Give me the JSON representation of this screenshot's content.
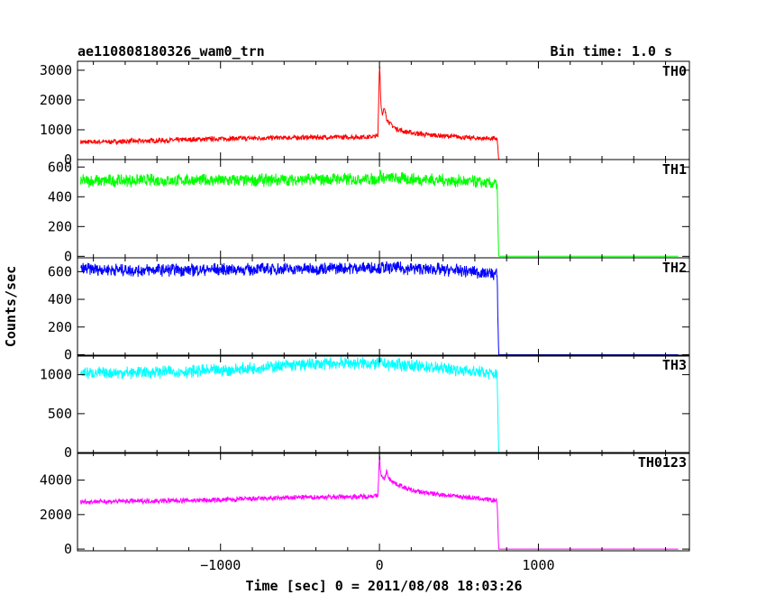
{
  "header": {
    "title": "ae110808180326_wam0_trn",
    "bin_time": "Bin time: 1.0 s"
  },
  "chart_data": {
    "type": "line",
    "xlabel": "Time [sec] 0 = 2011/08/08 18:03:26",
    "ylabel": "Counts/sec",
    "xlim": [
      -1900,
      1950
    ],
    "xticks": [
      -1000,
      0,
      1000
    ],
    "xtick_labels": [
      "−1000",
      "0",
      "1000"
    ],
    "grid": false,
    "panels": [
      {
        "name": "TH0",
        "color": "#ff0000",
        "ylim": [
          0,
          3300
        ],
        "yticks": [
          0,
          1000,
          2000,
          3000
        ],
        "ytick_labels": [
          "0",
          "1000",
          "2000",
          "3000"
        ],
        "x": [
          -1880,
          -1500,
          -1000,
          -500,
          -100,
          -10,
          0,
          5,
          10,
          20,
          30,
          45,
          60,
          100,
          150,
          200,
          300,
          400,
          500,
          600,
          740,
          750,
          760,
          1000,
          1500,
          1880
        ],
        "y": [
          580,
          620,
          700,
          740,
          760,
          780,
          3250,
          2600,
          1800,
          1500,
          1700,
          1400,
          1250,
          1050,
          950,
          900,
          830,
          800,
          760,
          720,
          700,
          0,
          0,
          0,
          0,
          0
        ]
      },
      {
        "name": "TH1",
        "color": "#00ff00",
        "ylim": [
          -10,
          650
        ],
        "yticks": [
          0,
          200,
          400,
          600
        ],
        "ytick_labels": [
          "0",
          "200",
          "400",
          "600"
        ],
        "x": [
          -1880,
          -1500,
          -1000,
          -500,
          0,
          5,
          10,
          300,
          600,
          740,
          750,
          760,
          1000,
          1500,
          1880
        ],
        "y": [
          505,
          510,
          510,
          515,
          520,
          580,
          525,
          515,
          500,
          485,
          0,
          0,
          0,
          0,
          0
        ]
      },
      {
        "name": "TH2",
        "color": "#0000ff",
        "ylim": [
          -10,
          700
        ],
        "yticks": [
          0,
          200,
          400,
          600
        ],
        "ytick_labels": [
          "0",
          "200",
          "400",
          "600"
        ],
        "x": [
          -1880,
          -1500,
          -1000,
          -500,
          0,
          300,
          600,
          740,
          750,
          760,
          1000,
          1500,
          1880
        ],
        "y": [
          620,
          610,
          615,
          620,
          630,
          620,
          600,
          580,
          0,
          0,
          0,
          0,
          0
        ]
      },
      {
        "name": "TH3",
        "color": "#00ffff",
        "ylim": [
          -10,
          1250
        ],
        "yticks": [
          0,
          500,
          1000
        ],
        "ytick_labels": [
          "0",
          "500",
          "1000"
        ],
        "x": [
          -1880,
          -1500,
          -1000,
          -700,
          -400,
          -200,
          0,
          200,
          400,
          600,
          740,
          750,
          760,
          1000,
          1500,
          1880
        ],
        "y": [
          1020,
          1030,
          1050,
          1100,
          1140,
          1150,
          1140,
          1120,
          1080,
          1040,
          1000,
          0,
          0,
          0,
          0,
          0
        ]
      },
      {
        "name": "TH0123",
        "color": "#ff00ff",
        "ylim": [
          -100,
          5600
        ],
        "yticks": [
          0,
          2000,
          4000
        ],
        "ytick_labels": [
          "0",
          "2000",
          "4000"
        ],
        "x": [
          -1880,
          -1500,
          -1000,
          -500,
          -100,
          -10,
          0,
          5,
          15,
          30,
          45,
          60,
          100,
          150,
          200,
          300,
          400,
          500,
          600,
          740,
          750,
          760,
          1000,
          1500,
          1880
        ],
        "y": [
          2750,
          2780,
          2850,
          3000,
          3050,
          3100,
          5500,
          4500,
          4200,
          4000,
          4500,
          4100,
          3800,
          3600,
          3400,
          3250,
          3150,
          3050,
          2950,
          2800,
          0,
          0,
          0,
          0,
          0
        ]
      }
    ]
  }
}
